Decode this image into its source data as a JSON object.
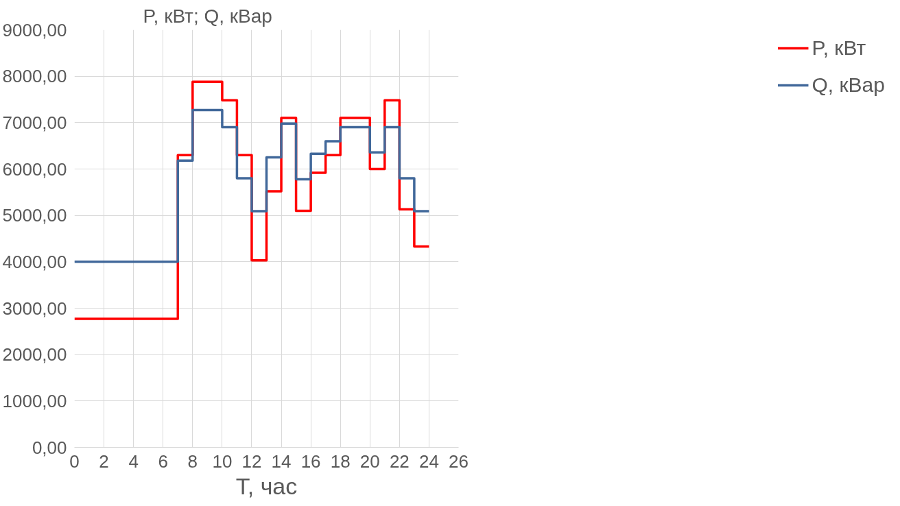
{
  "chart_data": {
    "type": "step",
    "xlabel": "T, час",
    "ylabel": "P, кВт; Q, кВар",
    "x": [
      0,
      7,
      8,
      10,
      11,
      12,
      13,
      14,
      15,
      16,
      17,
      18,
      20,
      21,
      22,
      23,
      24
    ],
    "series": [
      {
        "name": "P, кВт",
        "color": "#ff0000",
        "values": [
          2770,
          6300,
          7880,
          7480,
          6300,
          4030,
          5520,
          7100,
          5100,
          5920,
          6300,
          7100,
          6000,
          7480,
          5130,
          4330,
          4330
        ]
      },
      {
        "name": "Q, кВар",
        "color": "#41689a",
        "values": [
          4000,
          6180,
          7270,
          6900,
          5800,
          5090,
          6250,
          6980,
          5780,
          6330,
          6600,
          6900,
          6360,
          6900,
          5800,
          5090,
          5090
        ]
      }
    ],
    "xlim": [
      0,
      26
    ],
    "xticks": [
      0,
      2,
      4,
      6,
      8,
      10,
      12,
      14,
      16,
      18,
      20,
      22,
      24,
      26
    ],
    "ylim": [
      0,
      9000
    ],
    "yticks": [
      {
        "value": 0,
        "label": "0,00"
      },
      {
        "value": 1000,
        "label": "1000,00"
      },
      {
        "value": 2000,
        "label": "2000,00"
      },
      {
        "value": 3000,
        "label": "3000,00"
      },
      {
        "value": 4000,
        "label": "4000,00"
      },
      {
        "value": 5000,
        "label": "5000,00"
      },
      {
        "value": 6000,
        "label": "6000,00"
      },
      {
        "value": 7000,
        "label": "7000,00"
      },
      {
        "value": 8000,
        "label": "8000,00"
      },
      {
        "value": 9000,
        "label": "9000,00"
      }
    ],
    "grid": true,
    "legend": "right",
    "line_style": "solid"
  }
}
